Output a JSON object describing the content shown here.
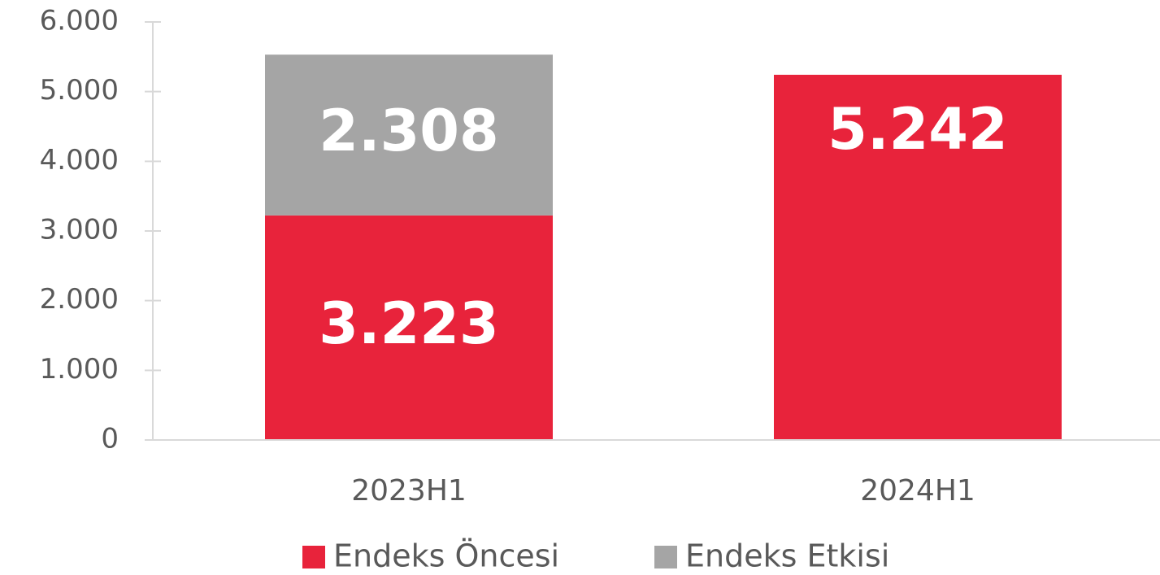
{
  "chart_data": {
    "type": "stacked_bar",
    "categories": [
      "2023H1",
      "2024H1"
    ],
    "series": [
      {
        "name": "Endeks Öncesi",
        "color": "#e8233b",
        "values": [
          3223,
          5242
        ],
        "value_labels": [
          "3.223",
          "5.242"
        ]
      },
      {
        "name": "Endeks Etkisi",
        "color": "#a5a5a5",
        "values": [
          2308,
          null
        ],
        "value_labels": [
          "2.308",
          null
        ]
      }
    ],
    "ylim": [
      0,
      6000
    ],
    "yticks": [
      0,
      {
        "value": 1000,
        "label": "1.000"
      },
      {
        "value": 2000,
        "label": "2.000"
      },
      {
        "value": 3000,
        "label": "3.000"
      },
      {
        "value": 4000,
        "label": "4.000"
      },
      {
        "value": 5000,
        "label": "5.000"
      },
      {
        "value": 6000,
        "label": "6.000"
      }
    ],
    "legend": "bottom"
  }
}
